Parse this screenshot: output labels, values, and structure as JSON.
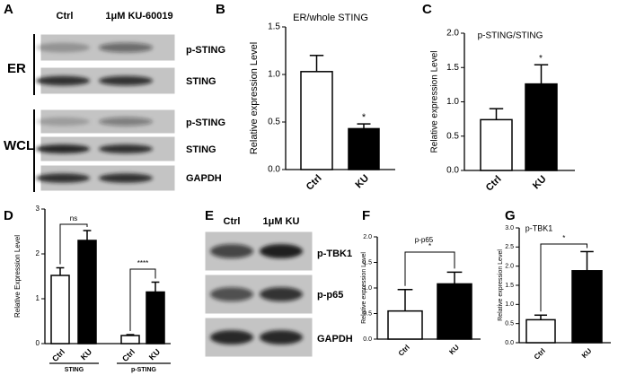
{
  "blots": [
    {
      "panel": "A",
      "lanes": [
        "Ctrl",
        "1μM KU-60019"
      ],
      "groups": [
        {
          "label": "ER",
          "rows": [
            "p-STING",
            "STING"
          ]
        },
        {
          "label": "WCL",
          "rows": [
            "p-STING",
            "STING",
            "GAPDH"
          ]
        }
      ]
    },
    {
      "panel": "E",
      "lanes": [
        "Ctrl",
        "1μM KU"
      ],
      "rows": [
        "p-TBK1",
        "p-p65",
        "GAPDH"
      ]
    }
  ],
  "chart_data": [
    {
      "panel": "B",
      "type": "bar",
      "title": "ER/whole STING",
      "ylabel": "Relative expression Level",
      "categories": [
        "Ctrl",
        "KU"
      ],
      "values": [
        1.03,
        0.43
      ],
      "errors": [
        0.17,
        0.05
      ],
      "colors": [
        "#ffffff",
        "#000000"
      ],
      "ylim": [
        0,
        1.5
      ],
      "yticks": [
        {
          "value": 0,
          "label": "0.0"
        },
        0.5,
        {
          "value": 1,
          "label": "1.0"
        },
        1.5
      ],
      "annotations": [
        {
          "text": "*"
        }
      ]
    },
    {
      "panel": "C",
      "type": "bar",
      "title": "p-STING/STING",
      "ylabel": "Relative expression Level",
      "categories": [
        "Ctrl",
        "KU"
      ],
      "values": [
        0.74,
        1.26
      ],
      "errors": [
        0.16,
        0.28
      ],
      "colors": [
        "#ffffff",
        "#000000"
      ],
      "ylim": [
        0,
        2
      ],
      "yticks": [
        {
          "value": 0,
          "label": "0.0"
        },
        0.5,
        {
          "value": 1,
          "label": "1.0"
        },
        1.5,
        {
          "value": 2,
          "label": "2.0"
        }
      ],
      "annotations": [
        {
          "text": "*"
        }
      ]
    },
    {
      "panel": "D",
      "type": "bar",
      "ylabel": "Relative Expression Level",
      "categories": [
        "Ctrl",
        "KU",
        "Ctrl",
        "KU"
      ],
      "groups": [
        "STING",
        "p-STING"
      ],
      "values": [
        1.52,
        2.3,
        0.18,
        1.15
      ],
      "errors": [
        0.17,
        0.22,
        0.02,
        0.22
      ],
      "colors": [
        "#ffffff",
        "#000000",
        "#ffffff",
        "#000000"
      ],
      "ylim": [
        0,
        3
      ],
      "yticks": [
        0,
        1,
        2,
        3
      ],
      "annotations": [
        {
          "text": "ns"
        },
        {
          "text": "****"
        }
      ]
    },
    {
      "panel": "F",
      "type": "bar",
      "title": "p-p65",
      "ylabel": "Relative expression Level",
      "categories": [
        "Ctrl",
        "KU"
      ],
      "values": [
        0.55,
        1.08
      ],
      "errors": [
        0.42,
        0.23
      ],
      "colors": [
        "#ffffff",
        "#000000"
      ],
      "ylim": [
        0,
        2
      ],
      "yticks": [
        {
          "value": 0,
          "label": "0.0"
        },
        0.5,
        {
          "value": 1,
          "label": "1.0"
        },
        1.5,
        {
          "value": 2,
          "label": "2.0"
        }
      ],
      "annotations": [
        {
          "text": "*"
        }
      ]
    },
    {
      "panel": "G",
      "type": "bar",
      "title": "p-TBK1",
      "ylabel": "Relative expression Level",
      "categories": [
        "Ctrl",
        "KU"
      ],
      "values": [
        0.6,
        1.88
      ],
      "errors": [
        0.12,
        0.5
      ],
      "colors": [
        "#ffffff",
        "#000000"
      ],
      "ylim": [
        0,
        3
      ],
      "yticks": [
        {
          "value": 0,
          "label": "0.0"
        },
        0.5,
        {
          "value": 1,
          "label": "1.0"
        },
        1.5,
        {
          "value": 2,
          "label": "2.0"
        },
        2.5,
        {
          "value": 3,
          "label": "3.0"
        }
      ],
      "annotations": [
        {
          "text": "*"
        }
      ]
    }
  ]
}
